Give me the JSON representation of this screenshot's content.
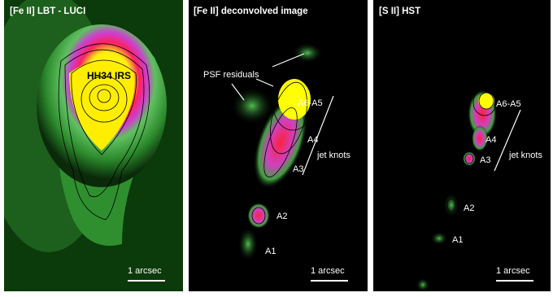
{
  "panels": [
    {
      "title": "[Fe II] LBT - LUCI",
      "labels": [
        "HH34 IRS"
      ],
      "scale_bar": "1 arcsec"
    },
    {
      "title": "[Fe II] deconvolved image",
      "labels": [
        "PSF residuals",
        "A6-A5",
        "A4",
        "A3",
        "jet knots",
        "A2",
        "A1"
      ],
      "scale_bar": "1 arcsec"
    },
    {
      "title": "[S II] HST",
      "labels": [
        "A6-A5",
        "A4",
        "A3",
        "jet knots",
        "A2",
        "A1"
      ],
      "scale_bar": "1 arcsec"
    }
  ]
}
